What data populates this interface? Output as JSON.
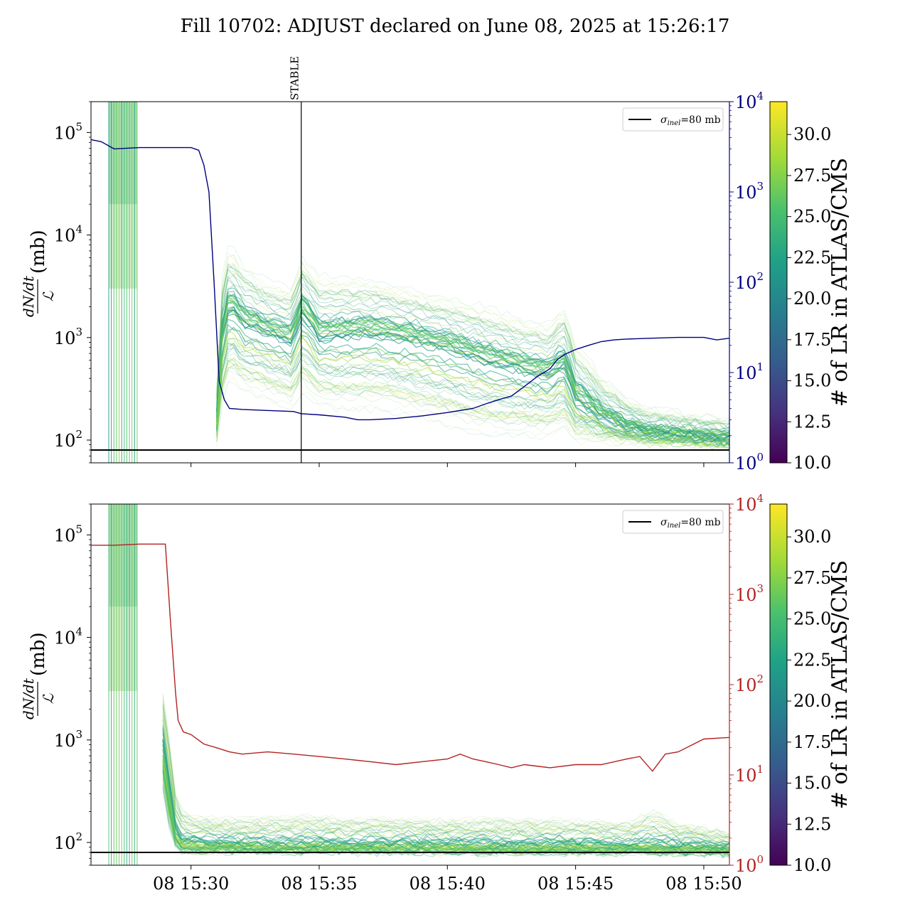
{
  "figure": {
    "title": "Fill 10702: ADJUST declared on June 08, 2025 at 15:26:17"
  },
  "chart_data": [
    {
      "type": "line",
      "panel": "top",
      "ylabel_num": "dN/dt",
      "ylabel_den": "ℒ",
      "ylabel_unit": "(mb)",
      "yscale": "log",
      "ylim": [
        60,
        200000
      ],
      "yticks": [
        {
          "label": "10",
          "exp": "2",
          "v": 100
        },
        {
          "label": "10",
          "exp": "3",
          "v": 1000
        },
        {
          "label": "10",
          "exp": "4",
          "v": 10000
        },
        {
          "label": "10",
          "exp": "5",
          "v": 100000
        }
      ],
      "y2scale": "log",
      "y2lim": [
        1,
        10000
      ],
      "y2color": "#000080",
      "y2ticks": [
        {
          "label": "10",
          "exp": "0",
          "v": 1
        },
        {
          "label": "10",
          "exp": "1",
          "v": 10
        },
        {
          "label": "10",
          "exp": "2",
          "v": 100
        },
        {
          "label": "10",
          "exp": "3",
          "v": 1000
        },
        {
          "label": "10",
          "exp": "4",
          "v": 10000
        }
      ],
      "xlim_min": [
        -3.9,
        21.0
      ],
      "xticks": [],
      "hline": {
        "y": 80,
        "legend": "σ_inel=80 mb",
        "legend_main": "σ",
        "legend_sub": "inel",
        "legend_rest": "=80 mb"
      },
      "vline": {
        "x": 4.3,
        "label": "STABLE"
      },
      "colorbar": {
        "label": "# of LR in ATLAS/CMS",
        "range": [
          10.0,
          32.0
        ],
        "colormap": "viridis",
        "ticks": [
          "10.0",
          "12.5",
          "15.0",
          "17.5",
          "20.0",
          "22.5",
          "25.0",
          "27.5",
          "30.0"
        ]
      },
      "band": {
        "x": [
          1.0,
          1.5,
          2.0,
          3.0,
          4.0,
          4.3,
          5.0,
          6.0,
          7.0,
          8.0,
          9.0,
          10.0,
          11.0,
          12.0,
          13.0,
          14.0,
          14.5,
          15.0,
          16.0,
          17.0,
          18.0,
          19.0,
          20.0,
          21.0
        ],
        "median": [
          150,
          2000,
          1400,
          1100,
          900,
          1800,
          1000,
          1050,
          1100,
          1000,
          900,
          800,
          650,
          560,
          480,
          420,
          550,
          260,
          170,
          130,
          115,
          110,
          105,
          100
        ],
        "low": [
          90,
          400,
          300,
          250,
          200,
          300,
          220,
          200,
          200,
          190,
          160,
          140,
          120,
          110,
          110,
          110,
          130,
          100,
          100,
          95,
          92,
          92,
          90,
          88
        ],
        "high": [
          300,
          8000,
          5000,
          3500,
          3000,
          6000,
          4000,
          3800,
          3600,
          3200,
          2800,
          2400,
          2100,
          1800,
          1500,
          1300,
          2000,
          800,
          400,
          250,
          200,
          180,
          170,
          160
        ]
      },
      "pre_region": {
        "x": [
          -3.9,
          -2.1
        ],
        "low": 90,
        "high": 200000
      },
      "series2": {
        "name": "",
        "x": [
          -3.9,
          -3.5,
          -3.0,
          -2.0,
          -1.0,
          0.0,
          0.3,
          0.5,
          0.7,
          0.9,
          1.1,
          1.3,
          1.5,
          2.0,
          3.0,
          4.0,
          4.3,
          5.0,
          6.0,
          6.5,
          7.0,
          8.0,
          9.0,
          10.0,
          11.0,
          11.5,
          12.0,
          12.5,
          13.0,
          13.5,
          14.0,
          14.3,
          14.6,
          15.0,
          15.5,
          16.0,
          16.5,
          17.0,
          18.0,
          19.0,
          20.0,
          20.5,
          21.0
        ],
        "y": [
          3800,
          3600,
          3000,
          3100,
          3100,
          3100,
          2900,
          2000,
          1000,
          100,
          8,
          5,
          4,
          3.9,
          3.8,
          3.7,
          3.5,
          3.4,
          3.2,
          3.0,
          3.0,
          3.1,
          3.3,
          3.6,
          4.0,
          4.5,
          5.0,
          5.5,
          7.0,
          9.0,
          11.0,
          14.0,
          16.0,
          18.0,
          20.0,
          22.0,
          23.0,
          23.5,
          24.0,
          24.5,
          24.5,
          23.0,
          24.0
        ]
      }
    },
    {
      "type": "line",
      "panel": "bottom",
      "ylabel_num": "dN/dt",
      "ylabel_den": "ℒ",
      "ylabel_unit": "(mb)",
      "yscale": "log",
      "ylim": [
        60,
        200000
      ],
      "yticks": [
        {
          "label": "10",
          "exp": "2",
          "v": 100
        },
        {
          "label": "10",
          "exp": "3",
          "v": 1000
        },
        {
          "label": "10",
          "exp": "4",
          "v": 10000
        },
        {
          "label": "10",
          "exp": "5",
          "v": 100000
        }
      ],
      "y2scale": "log",
      "y2lim": [
        1,
        10000
      ],
      "y2color": "#b22222",
      "y2ticks": [
        {
          "label": "10",
          "exp": "0",
          "v": 1
        },
        {
          "label": "10",
          "exp": "1",
          "v": 10
        },
        {
          "label": "10",
          "exp": "2",
          "v": 100
        },
        {
          "label": "10",
          "exp": "3",
          "v": 1000
        },
        {
          "label": "10",
          "exp": "4",
          "v": 10000
        }
      ],
      "xlim_min": [
        -3.9,
        21.0
      ],
      "xticks": [
        {
          "label": "08 15:30",
          "v": 0
        },
        {
          "label": "08 15:35",
          "v": 5
        },
        {
          "label": "08 15:40",
          "v": 10
        },
        {
          "label": "08 15:45",
          "v": 15
        },
        {
          "label": "08 15:50",
          "v": 20
        }
      ],
      "hline": {
        "y": 80,
        "legend": "σ_inel=80 mb",
        "legend_main": "σ",
        "legend_sub": "inel",
        "legend_rest": "=80 mb"
      },
      "colorbar": {
        "label": "# of LR in ATLAS/CMS",
        "range": [
          10.0,
          32.0
        ],
        "colormap": "viridis",
        "ticks": [
          "10.0",
          "12.5",
          "15.0",
          "17.5",
          "20.0",
          "22.5",
          "25.0",
          "27.5",
          "30.0"
        ]
      },
      "band": {
        "x": [
          -1.1,
          -0.8,
          -0.6,
          -0.5,
          0.0,
          1.0,
          2.0,
          4.0,
          6.0,
          8.0,
          10.0,
          12.0,
          14.0,
          16.0,
          17.0,
          18.0,
          19.0,
          20.0,
          21.0
        ],
        "median": [
          800,
          200,
          120,
          100,
          95,
          92,
          90,
          90,
          90,
          90,
          89,
          88,
          88,
          88,
          88,
          87,
          86,
          85,
          84
        ],
        "low": [
          300,
          100,
          90,
          85,
          84,
          84,
          84,
          84,
          84,
          84,
          84,
          84,
          84,
          84,
          84,
          84,
          83,
          83,
          82
        ],
        "high": [
          3000,
          600,
          300,
          220,
          180,
          170,
          170,
          180,
          170,
          170,
          165,
          170,
          165,
          160,
          150,
          200,
          150,
          140,
          120
        ]
      },
      "pre_region": {
        "x": [
          -3.9,
          -2.1
        ],
        "low": 90,
        "high": 200000
      },
      "series2": {
        "name": "",
        "x": [
          -3.9,
          -3.5,
          -3.0,
          -2.0,
          -1.0,
          -0.8,
          -0.6,
          -0.5,
          -0.3,
          0.0,
          0.5,
          1.0,
          1.5,
          2.0,
          3.0,
          4.0,
          5.0,
          6.0,
          7.0,
          8.0,
          9.0,
          10.0,
          10.5,
          11.0,
          11.5,
          12.0,
          12.5,
          13.0,
          14.0,
          15.0,
          16.0,
          17.0,
          17.5,
          18.0,
          18.5,
          19.0,
          20.0,
          21.0
        ],
        "y": [
          3500,
          3500,
          3500,
          3600,
          3600,
          500,
          80,
          40,
          30,
          28,
          22,
          20,
          18,
          17,
          18,
          17,
          16,
          15,
          14,
          13,
          14,
          15,
          17,
          15,
          14,
          13,
          12,
          13,
          12,
          13,
          13,
          15,
          16,
          11,
          17,
          18,
          25,
          26
        ]
      }
    }
  ]
}
